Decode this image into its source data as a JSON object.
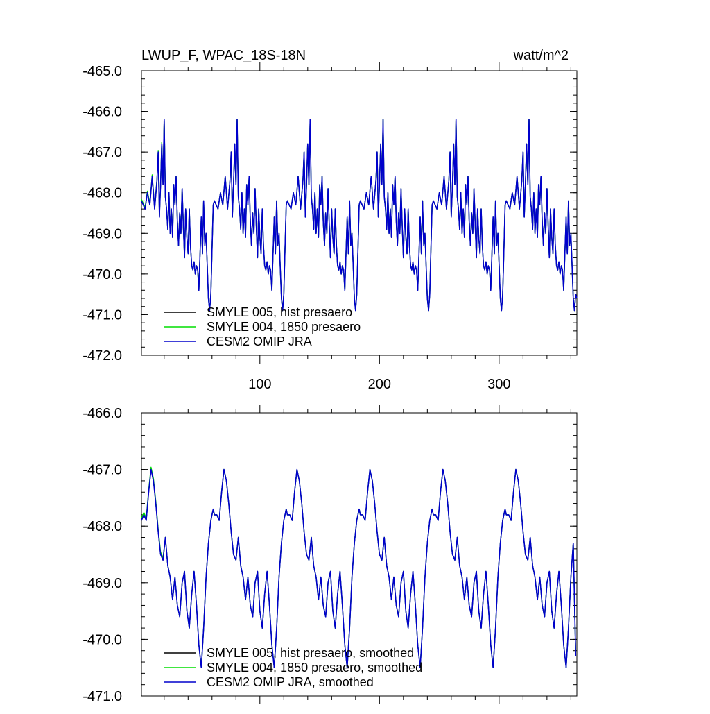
{
  "chart_data": [
    {
      "type": "line",
      "title": "LWUP_F, WPAC_18S-18N",
      "units": "watt/m^2",
      "xlim": [
        1,
        365
      ],
      "ylim": [
        -472.0,
        -465.0
      ],
      "yticks": [
        "-465.0",
        "-466.0",
        "-467.0",
        "-468.0",
        "-469.0",
        "-470.0",
        "-471.0",
        "-472.0"
      ],
      "ytick_values": [
        -465,
        -466,
        -467,
        -468,
        -469,
        -470,
        -471,
        -472
      ],
      "xticks": [
        "100",
        "200",
        "300"
      ],
      "xtick_values": [
        100,
        200,
        300
      ],
      "legend_position": "bottom-left",
      "series": [
        {
          "name": "SMYLE 005, hist presaero",
          "color": "#000000"
        },
        {
          "name": "SMYLE 004, 1850 presaero",
          "color": "#00dd00"
        },
        {
          "name": "CESM2 OMIP JRA",
          "color": "#0000cc"
        }
      ],
      "cycle_days": 61,
      "cycle_x": [
        0,
        3,
        5,
        7,
        9,
        11,
        13,
        14,
        15,
        16,
        17,
        18,
        19,
        20,
        21,
        22,
        23,
        24,
        25,
        26,
        27,
        28,
        29,
        30,
        31,
        32,
        33,
        34,
        35,
        36,
        37,
        38,
        39,
        40,
        41,
        42,
        43,
        44,
        45,
        46,
        47,
        48,
        49,
        50,
        51,
        52,
        53,
        54,
        55,
        56,
        57,
        58,
        59,
        60,
        61
      ],
      "cycle_y": [
        -468.2,
        -468.4,
        -468.0,
        -468.3,
        -467.6,
        -468.4,
        -467.7,
        -467.0,
        -468.6,
        -467.8,
        -466.8,
        -467.8,
        -466.2,
        -468.1,
        -468.4,
        -468.9,
        -468.0,
        -469.0,
        -468.4,
        -469.1,
        -467.8,
        -468.3,
        -467.6,
        -468.7,
        -469.3,
        -468.5,
        -469.0,
        -467.9,
        -468.8,
        -469.6,
        -468.4,
        -469.1,
        -469.5,
        -468.4,
        -469.3,
        -469.8,
        -469.9,
        -469.7,
        -470.0,
        -469.8,
        -469.9,
        -470.4,
        -469.5,
        -468.6,
        -469.5,
        -468.2,
        -469.3,
        -469.0,
        -469.8,
        -470.6,
        -470.9,
        -470.5,
        -469.4,
        -468.3,
        -468.2
      ],
      "y_start": -468.2,
      "y_end": -470.6
    },
    {
      "type": "line",
      "title": "",
      "units": "",
      "xlim": [
        1,
        365
      ],
      "ylim": [
        -471.0,
        -466.0
      ],
      "yticks": [
        "-466.0",
        "-467.0",
        "-468.0",
        "-469.0",
        "-470.0",
        "-471.0"
      ],
      "ytick_values": [
        -466,
        -467,
        -468,
        -469,
        -470,
        -471
      ],
      "xticks": [],
      "xtick_values": [
        100,
        200,
        300
      ],
      "legend_position": "bottom-left",
      "series": [
        {
          "name": "SMYLE 005, hist presaero, smoothed",
          "color": "#000000"
        },
        {
          "name": "SMYLE 004, 1850 presaero, smoothed",
          "color": "#00dd00"
        },
        {
          "name": "CESM2 OMIP JRA, smoothed",
          "color": "#0000cc"
        }
      ],
      "cycle_days": 61,
      "cycle_x": [
        0,
        2,
        4,
        6,
        8,
        10,
        12,
        14,
        16,
        18,
        20,
        22,
        24,
        26,
        28,
        30,
        32,
        34,
        36,
        38,
        40,
        42,
        44,
        46,
        48,
        50,
        52,
        54,
        56,
        58,
        60,
        61
      ],
      "cycle_y": [
        -468.0,
        -467.8,
        -467.9,
        -467.4,
        -467.0,
        -467.2,
        -467.6,
        -468.1,
        -468.5,
        -468.6,
        -468.2,
        -468.7,
        -468.9,
        -469.3,
        -468.9,
        -469.4,
        -469.6,
        -469.0,
        -468.8,
        -469.5,
        -469.8,
        -469.2,
        -468.8,
        -469.4,
        -470.1,
        -470.5,
        -469.8,
        -468.9,
        -468.3,
        -467.9,
        -467.7,
        -467.8
      ],
      "y_start": -467.9,
      "y_end": -470.3
    }
  ]
}
